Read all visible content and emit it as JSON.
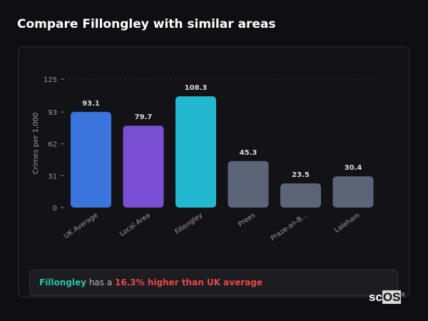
{
  "page_title": "Compare Fillongley with similar areas",
  "chart_data": {
    "type": "bar",
    "categories": [
      "UK Average",
      "Local Area",
      "Fillongley",
      "Prees",
      "Praze-an-B...",
      "Laleham"
    ],
    "values": [
      93.1,
      79.7,
      108.3,
      45.3,
      23.5,
      30.4
    ],
    "data_labels": [
      "93.1",
      "79.7",
      "108.3",
      "45.3",
      "23.5",
      "30.4"
    ],
    "colors": [
      "#3a74dc",
      "#7b4fd4",
      "#22b8d0",
      "#5b6577",
      "#5b6577",
      "#5b6577"
    ],
    "ylabel": "Crimes per 1,000",
    "xlabel": "",
    "ylim": [
      0,
      125
    ],
    "yticks": [
      0,
      31,
      62,
      93,
      125
    ],
    "grid": "top dashed line only",
    "legend": "none"
  },
  "summary": {
    "area": "Fillongley",
    "middle": " has a ",
    "comparison": "16.3% higher than UK average"
  },
  "logo": {
    "text_a": "sc",
    "text_b": "OS",
    "mark": "®"
  }
}
